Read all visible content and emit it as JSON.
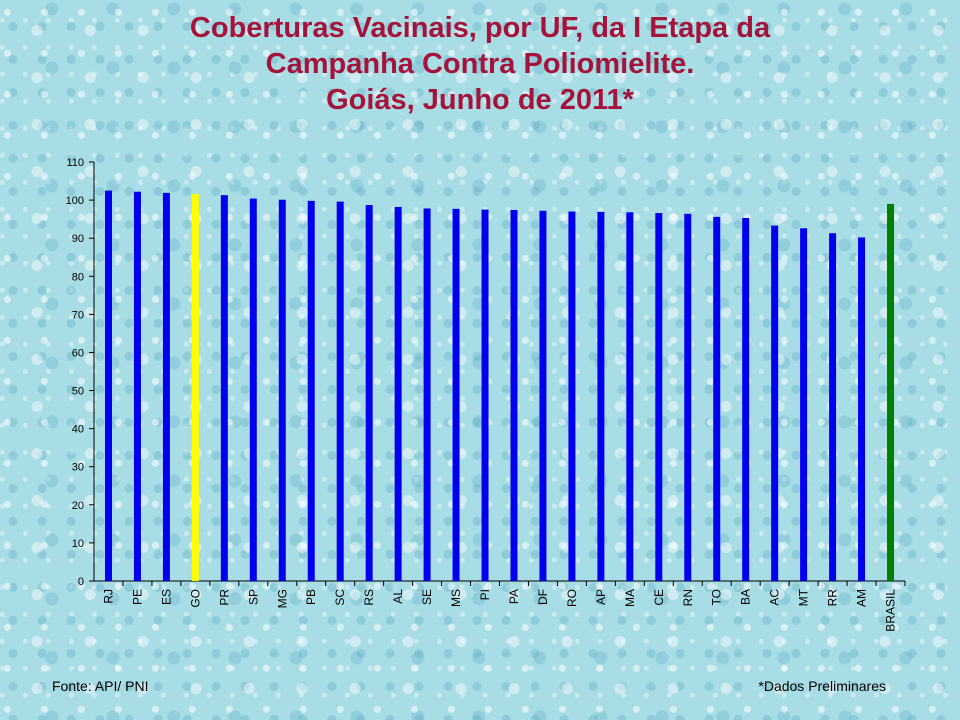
{
  "title": {
    "line1": "Coberturas Vacinais, por UF, da I Etapa da",
    "line2": "Campanha Contra Poliomielite.",
    "line3": "Goiás, Junho de 2011*"
  },
  "footer": {
    "source": "Fonte: API/ PNI",
    "note": "*Dados Preliminares"
  },
  "colors": {
    "default_bar": "#0000ee",
    "highlight_bar": "#ffff00",
    "national_bar": "#008000",
    "title": "#a5123a"
  },
  "chart_data": {
    "type": "bar",
    "title": "Coberturas Vacinais, por UF, da I Etapa da Campanha Contra Poliomielite. Goiás, Junho de 2011*",
    "xlabel": "",
    "ylabel": "",
    "ylim": [
      0,
      110
    ],
    "yticks": [
      0,
      10,
      20,
      30,
      40,
      50,
      60,
      70,
      80,
      90,
      100,
      110
    ],
    "grid": false,
    "legend": "none",
    "categories": [
      "RJ",
      "PE",
      "ES",
      "GO",
      "PR",
      "SP",
      "MG",
      "PB",
      "SC",
      "RS",
      "AL",
      "SE",
      "MS",
      "PI",
      "PA",
      "DF",
      "RO",
      "AP",
      "MA",
      "CE",
      "RN",
      "TO",
      "BA",
      "AC",
      "MT",
      "RR",
      "AM",
      "BRASIL"
    ],
    "values": [
      102.5,
      102.2,
      101.9,
      101.6,
      101.3,
      100.4,
      100.1,
      99.8,
      99.6,
      98.7,
      98.2,
      97.8,
      97.7,
      97.5,
      97.4,
      97.2,
      97.0,
      96.9,
      96.8,
      96.6,
      96.4,
      95.6,
      95.3,
      93.3,
      92.6,
      91.3,
      90.2,
      99.0
    ],
    "highlight": {
      "GO": "#ffff00",
      "BRASIL": "#008000"
    }
  }
}
